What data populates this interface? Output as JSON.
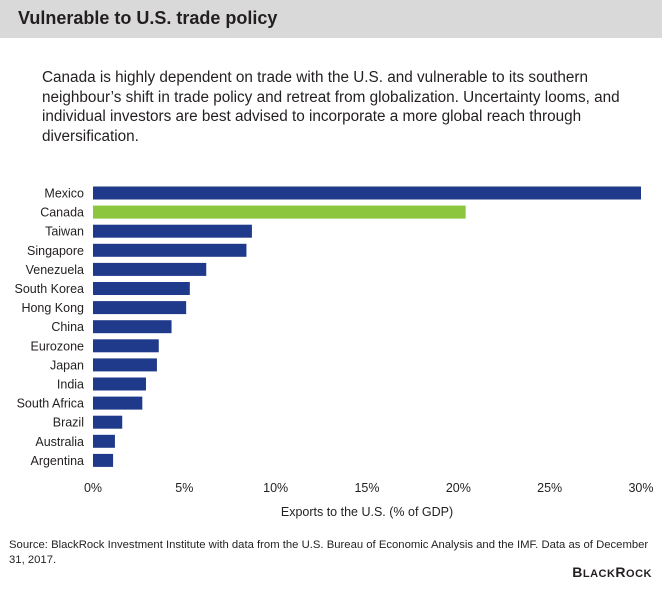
{
  "header": {
    "title": "Vulnerable to U.S. trade policy"
  },
  "intro": "Canada is highly dependent on trade with the U.S. and vulnerable to its southern neighbour’s shift in trade policy and retreat from globalization. Uncertainty looms, and individual investors are best advised to incorporate a more global reach through diversification.",
  "chart_data": {
    "type": "bar",
    "orientation": "horizontal",
    "title": "",
    "xlabel": "Exports to the U.S. (% of GDP)",
    "ylabel": "",
    "xlim": [
      0,
      30
    ],
    "xticks": [
      "0%",
      "5%",
      "10%",
      "15%",
      "20%",
      "25%",
      "30%"
    ],
    "grid": false,
    "categories": [
      "Mexico",
      "Canada",
      "Taiwan",
      "Singapore",
      "Venezuela",
      "South Korea",
      "Hong Kong",
      "China",
      "Eurozone",
      "Japan",
      "India",
      "South Africa",
      "Brazil",
      "Australia",
      "Argentina"
    ],
    "values": [
      30.0,
      20.4,
      8.7,
      8.4,
      6.2,
      5.3,
      5.1,
      4.3,
      3.6,
      3.5,
      2.9,
      2.7,
      1.6,
      1.2,
      1.1
    ],
    "colors": {
      "default": "#1f3a8a",
      "highlight": "#8cc63f",
      "highlight_category": "Canada"
    }
  },
  "source": "Source: BlackRock Investment Institute with data from the U.S. Bureau of Economic Analysis and the IMF. Data as of December 31, 2017.",
  "logo": {
    "text": "BLACKROCK"
  }
}
